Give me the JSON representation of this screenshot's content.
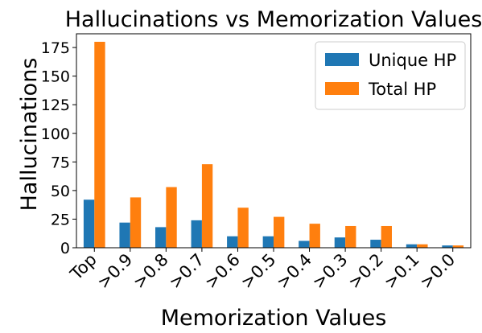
{
  "chart_data": {
    "type": "bar",
    "title": "Hallucinations vs Memorization Values",
    "xlabel": "Memorization Values",
    "ylabel": "Hallucinations",
    "categories": [
      "Top",
      ">0.9",
      ">0.8",
      ">0.7",
      ">0.6",
      ">0.5",
      ">0.4",
      ">0.3",
      ">0.2",
      ">0.1",
      ">0.0"
    ],
    "series": [
      {
        "name": "Unique HP",
        "color": "#1f77b4",
        "values": [
          42,
          22,
          18,
          24,
          10,
          10,
          6,
          9,
          7,
          3,
          2
        ]
      },
      {
        "name": "Total HP",
        "color": "#ff7f0e",
        "values": [
          180,
          44,
          53,
          73,
          35,
          27,
          21,
          19,
          19,
          3,
          2
        ]
      }
    ],
    "ylim": [
      0,
      187
    ],
    "yticks": [
      0,
      25,
      50,
      75,
      100,
      125,
      150,
      175
    ],
    "grid": false,
    "legend_position": "top-right"
  }
}
